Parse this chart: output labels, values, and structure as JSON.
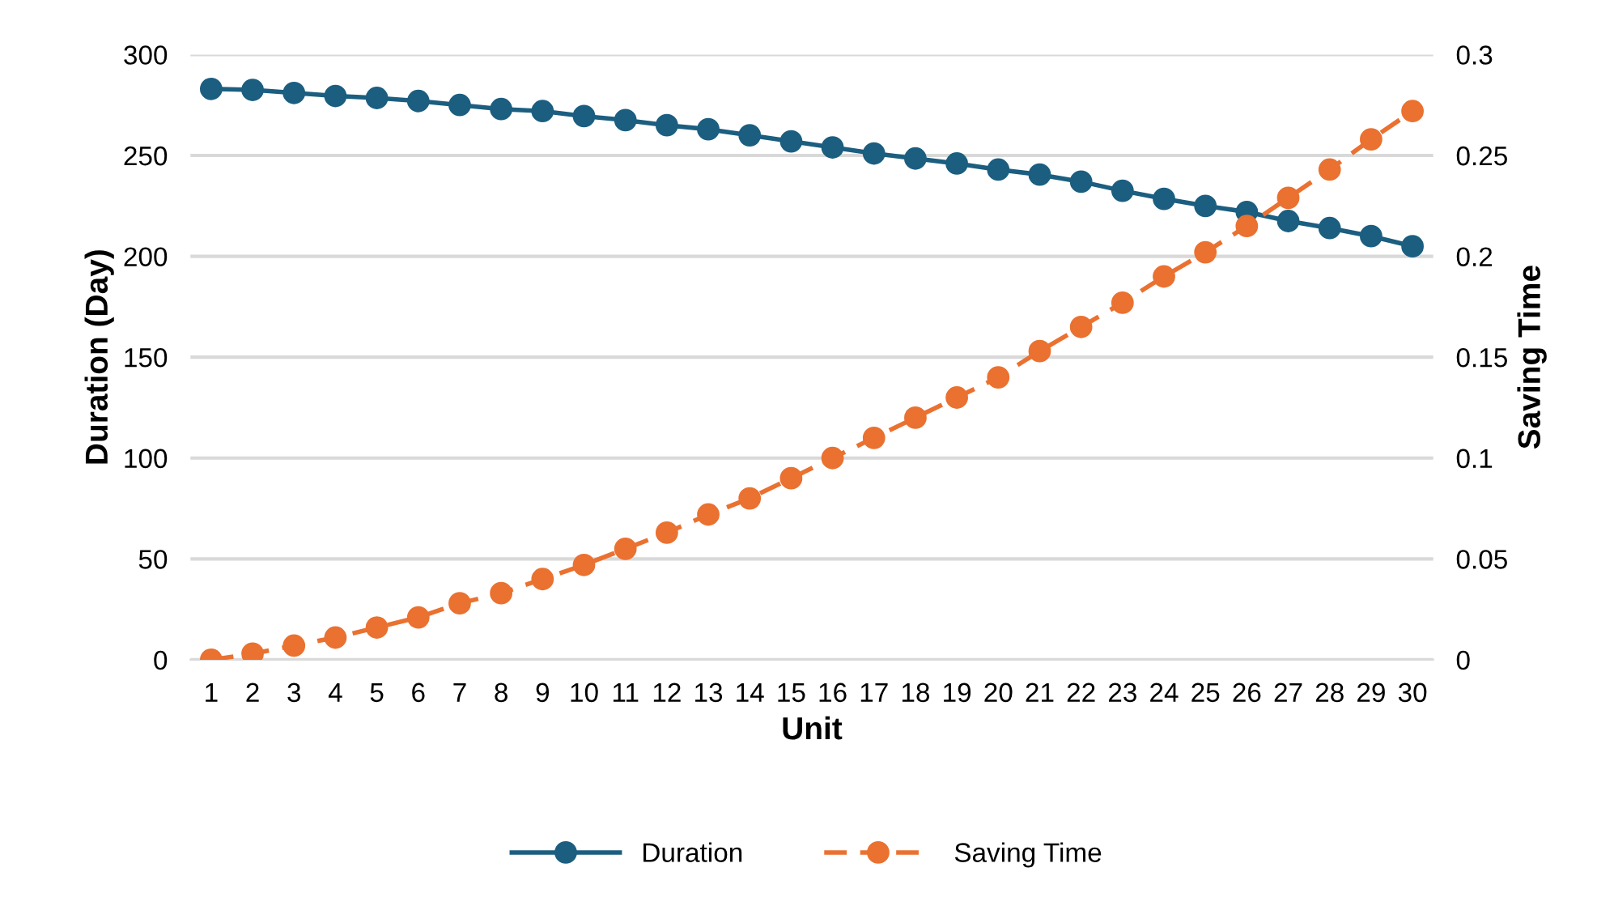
{
  "chart_data": {
    "type": "line",
    "xlabel": "Unit",
    "ylabel": "Duration (Day)",
    "y2label": "Saving Time",
    "categories": [
      "1",
      "2",
      "3",
      "4",
      "5",
      "6",
      "7",
      "8",
      "9",
      "10",
      "11",
      "12",
      "13",
      "14",
      "15",
      "16",
      "17",
      "18",
      "19",
      "20",
      "21",
      "22",
      "23",
      "24",
      "25",
      "26",
      "27",
      "28",
      "29",
      "30"
    ],
    "series": [
      {
        "name": "Duration",
        "color": "#1b5e80",
        "line_style": "solid",
        "values": [
          283,
          282.5,
          281,
          279.5,
          278.5,
          277,
          275,
          273,
          272,
          269.5,
          267.5,
          265,
          263,
          260,
          257,
          254,
          251,
          248.5,
          246,
          243,
          240.5,
          237,
          232.5,
          228.5,
          225,
          222,
          217.5,
          214,
          210,
          205
        ]
      },
      {
        "name": "Saving Time",
        "color": "#ea7130",
        "line_style": "dashed",
        "axis": "y2",
        "values": [
          0,
          0.003,
          0.007,
          0.011,
          0.016,
          0.021,
          0.028,
          0.033,
          0.04,
          0.047,
          0.055,
          0.063,
          0.072,
          0.08,
          0.09,
          0.1,
          0.11,
          0.12,
          0.13,
          0.14,
          0.153,
          0.165,
          0.177,
          0.19,
          0.202,
          0.215,
          0.229,
          0.243,
          0.258,
          0.272
        ]
      }
    ],
    "ylim": [
      0,
      300
    ],
    "yticks": [
      0,
      50,
      100,
      150,
      200,
      250,
      300
    ],
    "y2lim": [
      0,
      0.3
    ],
    "y2ticks": [
      0,
      0.05,
      0.1,
      0.15,
      0.2,
      0.25,
      0.3
    ],
    "grid": "y",
    "legend": "bottom",
    "marker": "circle"
  }
}
